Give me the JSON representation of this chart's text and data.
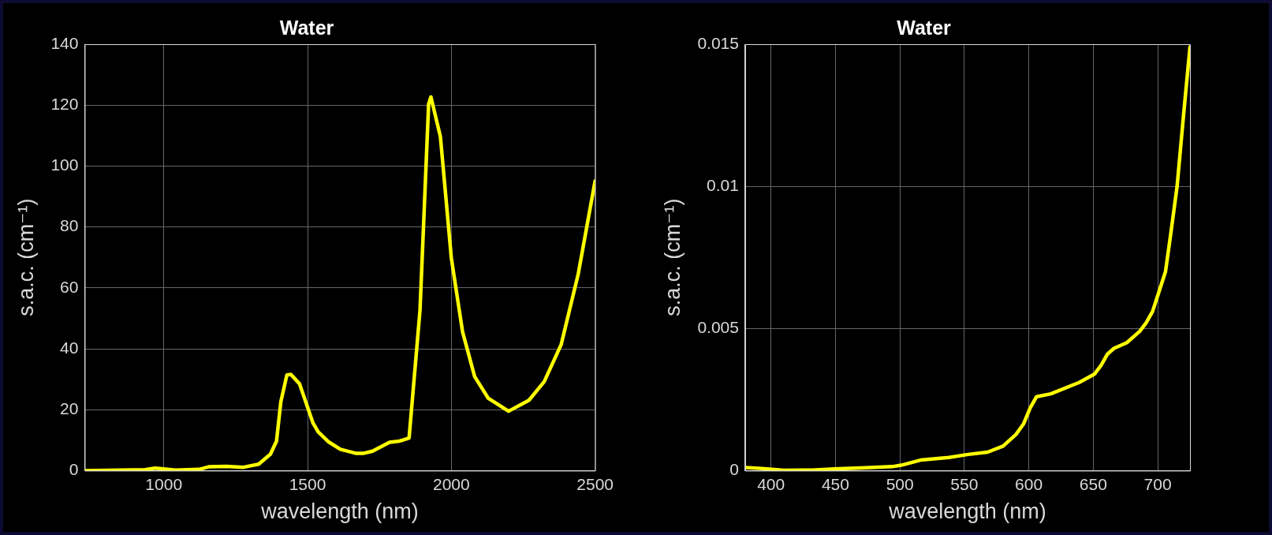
{
  "chart_data": [
    {
      "type": "line",
      "title": "Water",
      "xlabel": "wavelength (nm)",
      "ylabel": "s.a.c. (cm⁻¹)",
      "xlim": [
        725,
        2500
      ],
      "xticks": [
        1000,
        1500,
        2000,
        2500
      ],
      "ylim": [
        0,
        140
      ],
      "yticks": [
        0,
        20,
        40,
        60,
        80,
        100,
        120,
        140
      ],
      "grid": true,
      "legend": false,
      "marker": "none",
      "line_style": "solid",
      "series": [
        {
          "color": "#ffff00",
          "x": [
            725,
            934,
            970,
            1040,
            1123,
            1158,
            1218,
            1277,
            1330,
            1371,
            1392,
            1407,
            1428,
            1442,
            1472,
            1519,
            1537,
            1572,
            1614,
            1667,
            1696,
            1726,
            1785,
            1820,
            1853,
            1891,
            1921,
            1929,
            1962,
            2000,
            2039,
            2081,
            2128,
            2199,
            2270,
            2323,
            2382,
            2441,
            2500
          ],
          "values": [
            0.0,
            0.3,
            0.8,
            0.2,
            0.4,
            1.3,
            1.4,
            1.1,
            2.1,
            5.4,
            9.7,
            22.6,
            31.4,
            31.6,
            28.5,
            15.6,
            12.7,
            9.5,
            7.0,
            5.7,
            5.7,
            6.4,
            9.3,
            9.7,
            10.7,
            52.6,
            120.3,
            122.7,
            109.6,
            69.8,
            45.6,
            30.9,
            23.8,
            19.5,
            23.1,
            29.2,
            41.4,
            64.4,
            95.1
          ]
        }
      ]
    },
    {
      "type": "line",
      "title": "Water",
      "xlabel": "wavelength (nm)",
      "ylabel": "s.a.c. (cm⁻¹)",
      "xlim": [
        380,
        725
      ],
      "xticks": [
        400,
        450,
        500,
        550,
        600,
        650,
        700
      ],
      "ylim": [
        0,
        0.015
      ],
      "yticks": [
        0,
        0.005,
        0.01,
        0.015
      ],
      "grid": true,
      "legend": false,
      "marker": "none",
      "line_style": "solid",
      "series": [
        {
          "color": "#ffff00",
          "x": [
            380,
            395,
            410,
            432,
            449,
            474,
            494,
            501,
            516,
            538,
            553,
            568,
            580,
            590,
            596,
            601,
            606,
            617,
            639,
            651,
            656,
            661,
            666,
            676,
            686,
            691,
            696,
            701,
            706,
            710,
            715,
            720,
            725
          ],
          "values": [
            0.00011,
            7e-05,
            1e-05,
            2e-05,
            6e-05,
            0.0001,
            0.00014,
            0.00019,
            0.00037,
            0.00046,
            0.00057,
            0.00065,
            0.00086,
            0.00127,
            0.00165,
            0.0022,
            0.0026,
            0.0027,
            0.0031,
            0.0034,
            0.0037,
            0.0041,
            0.0043,
            0.0045,
            0.0049,
            0.0052,
            0.0056,
            0.0063,
            0.007,
            0.0083,
            0.01,
            0.0125,
            0.0149
          ]
        }
      ]
    }
  ]
}
